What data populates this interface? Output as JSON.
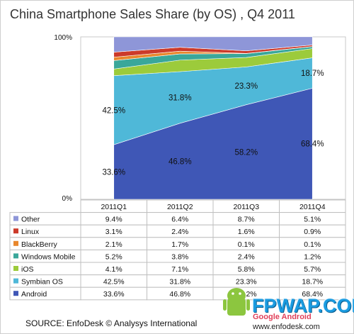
{
  "title": "China Smartphone Sales Share (by OS) , Q4 2011",
  "source": "SOURCE: EnfoDesk © Analysys International",
  "watermark": {
    "url": "FPWAP.COM",
    "tagline": "Google Android",
    "site": "www.enfodesk.com"
  },
  "chart_data": {
    "type": "area",
    "title": "China Smartphone Sales Share (by OS) , Q4 2011",
    "x": [
      "2011Q1",
      "2011Q2",
      "2011Q3",
      "2011Q4"
    ],
    "ylim": [
      0,
      100
    ],
    "y_ticks": [
      "0%",
      "100%"
    ],
    "legend_placement": "table-left",
    "stacking": "percent",
    "series": [
      {
        "name": "Android",
        "color": "#3f57b6",
        "values": [
          33.6,
          46.8,
          58.2,
          68.4
        ],
        "labels": [
          "33.6%",
          "46.8%",
          "58.2%",
          "68.4%"
        ],
        "display": [
          "33.6%",
          "46.8%",
          "58.2%",
          "68.4%"
        ]
      },
      {
        "name": "Symbian OS",
        "color": "#4fb8d8",
        "values": [
          42.5,
          31.8,
          23.3,
          18.7
        ],
        "labels": [
          "42.5%",
          "31.8%",
          "23.3%",
          "18.7%"
        ],
        "display": [
          "42.5%",
          "31.8%",
          "23.3%",
          "18.7%"
        ]
      },
      {
        "name": "iOS",
        "color": "#9ccb3b",
        "values": [
          4.1,
          7.1,
          5.8,
          5.7
        ],
        "display": [
          "4.1%",
          "7.1%",
          "5.8%",
          "5.7%"
        ]
      },
      {
        "name": "Windows Mobile",
        "color": "#3aa79a",
        "values": [
          5.2,
          3.8,
          2.4,
          1.2
        ],
        "display": [
          "5.2%",
          "3.8%",
          "2.4%",
          "1.2%"
        ]
      },
      {
        "name": "BlackBerry",
        "color": "#e8872c",
        "values": [
          2.1,
          1.7,
          0.1,
          0.1
        ],
        "display": [
          "2.1%",
          "1.7%",
          "0.1%",
          "0.1%"
        ]
      },
      {
        "name": "Linux",
        "color": "#cc3a2a",
        "values": [
          3.1,
          2.4,
          1.6,
          0.9
        ],
        "display": [
          "3.1%",
          "2.4%",
          "1.6%",
          "0.9%"
        ]
      },
      {
        "name": "Other",
        "color": "#8e96d8",
        "values": [
          9.4,
          6.4,
          8.7,
          5.1
        ],
        "display": [
          "9.4%",
          "6.4%",
          "8.7%",
          "5.1%"
        ]
      }
    ]
  }
}
